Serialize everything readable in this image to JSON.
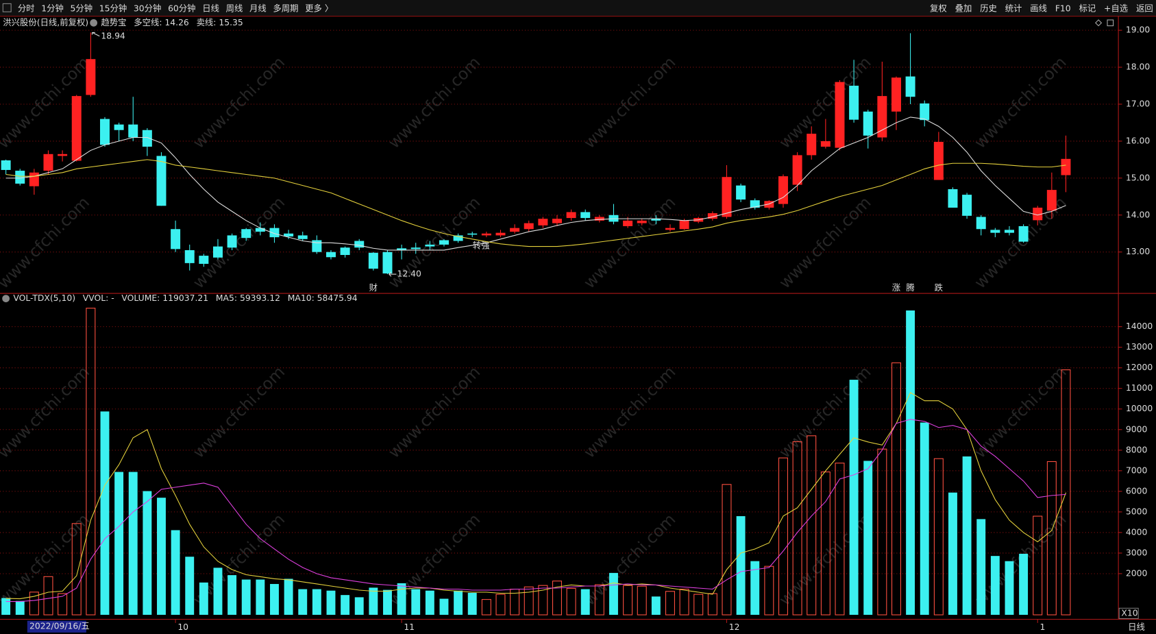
{
  "toolbar": {
    "left": [
      "分时",
      "1分钟",
      "5分钟",
      "15分钟",
      "30分钟",
      "60分钟",
      "日线",
      "周线",
      "月线",
      "多周期",
      "更多 〉"
    ],
    "active": "日线",
    "right": [
      "复权",
      "叠加",
      "历史",
      "统计",
      "画线",
      "F10",
      "标记",
      "+自选",
      "返回"
    ]
  },
  "watermark": "www.cfchi.com",
  "cursor_date": "2022/09/16/五",
  "period_label": "日线",
  "chart_data": [
    {
      "type": "candlestick",
      "title": "洪兴股份(日线,前复权)",
      "header": [
        {
          "text": "趋势宝",
          "color": "#dddddd"
        },
        {
          "text": "多空线: 14.26",
          "color": "#e8e8e8"
        },
        {
          "text": "卖线: 15.35",
          "color": "#e6d23c"
        }
      ],
      "categories": [
        null,
        null,
        null,
        null,
        null,
        null,
        null,
        null,
        null,
        null,
        null,
        null,
        "10",
        null,
        null,
        null,
        null,
        null,
        null,
        null,
        null,
        null,
        null,
        null,
        null,
        null,
        null,
        null,
        "11",
        null,
        null,
        null,
        null,
        null,
        null,
        null,
        null,
        null,
        null,
        null,
        null,
        null,
        null,
        null,
        null,
        null,
        null,
        null,
        null,
        null,
        null,
        "12",
        null,
        null,
        null,
        null,
        null,
        null,
        null,
        null,
        null,
        null,
        null,
        null,
        null,
        null,
        null,
        null,
        null,
        null,
        null,
        null,
        null,
        "1",
        null,
        null
      ],
      "open": [
        15.48,
        15.2,
        14.78,
        15.2,
        15.6,
        15.47,
        17.25,
        16.6,
        16.45,
        16.45,
        16.3,
        15.6,
        13.62,
        13.05,
        12.9,
        13.15,
        13.45,
        13.62,
        13.65,
        13.65,
        13.5,
        13.45,
        13.32,
        13.0,
        13.12,
        13.3,
        12.98,
        13.0,
        13.1,
        13.12,
        13.2,
        13.32,
        13.45,
        13.5,
        13.45,
        13.45,
        13.55,
        13.62,
        13.72,
        13.78,
        13.92,
        14.08,
        13.85,
        14.0,
        13.7,
        13.78,
        13.9,
        13.6,
        13.62,
        13.82,
        13.9,
        13.95,
        14.8,
        14.4,
        14.2,
        14.3,
        14.82,
        15.62,
        15.85,
        15.82,
        17.5,
        16.8,
        16.1,
        16.8,
        17.75,
        17.02,
        14.95,
        14.7,
        14.55,
        13.95,
        13.6,
        13.6,
        13.7,
        13.86,
        14.12,
        15.08
      ],
      "high": [
        15.5,
        15.25,
        15.25,
        15.75,
        15.75,
        17.25,
        18.94,
        16.65,
        16.5,
        17.2,
        16.35,
        15.7,
        13.85,
        13.2,
        12.95,
        13.35,
        13.5,
        13.65,
        13.8,
        13.75,
        13.6,
        13.55,
        13.45,
        13.05,
        13.15,
        13.35,
        13.0,
        13.05,
        13.2,
        13.25,
        13.3,
        13.35,
        13.5,
        13.55,
        13.55,
        13.6,
        13.75,
        13.85,
        13.95,
        14.0,
        14.15,
        14.15,
        14.0,
        14.3,
        13.95,
        13.9,
        14.0,
        13.75,
        13.9,
        13.95,
        14.1,
        15.35,
        14.85,
        14.45,
        14.4,
        15.1,
        15.7,
        16.4,
        16.6,
        17.65,
        18.2,
        16.85,
        18.15,
        17.75,
        18.92,
        17.1,
        16.25,
        14.75,
        14.6,
        14.0,
        13.65,
        13.7,
        13.75,
        14.25,
        15.15,
        16.15
      ],
      "low": [
        15.1,
        14.8,
        14.55,
        15.1,
        15.45,
        15.45,
        17.2,
        15.85,
        16.0,
        16.0,
        15.6,
        14.25,
        13.0,
        12.5,
        12.6,
        12.8,
        13.05,
        13.3,
        13.45,
        13.25,
        13.35,
        13.3,
        12.95,
        12.8,
        12.85,
        13.05,
        12.5,
        12.4,
        12.8,
        12.95,
        13.05,
        13.15,
        13.25,
        13.4,
        13.4,
        13.4,
        13.5,
        13.55,
        13.65,
        13.7,
        13.85,
        13.85,
        13.8,
        13.75,
        13.65,
        13.72,
        13.75,
        13.55,
        13.6,
        13.78,
        13.85,
        13.9,
        14.35,
        14.15,
        14.15,
        14.2,
        14.65,
        15.5,
        15.8,
        15.75,
        16.5,
        15.8,
        16.0,
        16.3,
        17.0,
        16.4,
        14.95,
        14.2,
        13.9,
        13.45,
        13.4,
        13.45,
        13.25,
        13.72,
        13.9,
        14.62
      ],
      "close": [
        15.22,
        14.85,
        15.15,
        15.65,
        15.65,
        17.22,
        18.22,
        15.9,
        16.3,
        16.1,
        15.85,
        14.25,
        13.08,
        12.7,
        12.68,
        12.85,
        13.12,
        13.38,
        13.55,
        13.4,
        13.42,
        13.35,
        13.0,
        12.86,
        12.92,
        13.12,
        12.55,
        12.42,
        13.05,
        13.08,
        13.15,
        13.2,
        13.3,
        13.47,
        13.5,
        13.52,
        13.65,
        13.78,
        13.9,
        13.9,
        14.08,
        13.92,
        13.95,
        13.82,
        13.85,
        13.85,
        13.85,
        13.65,
        13.85,
        13.92,
        14.05,
        15.03,
        14.42,
        14.2,
        14.38,
        15.05,
        15.62,
        16.2,
        16.0,
        17.6,
        16.58,
        16.15,
        17.22,
        17.72,
        17.2,
        16.57,
        15.98,
        14.2,
        13.98,
        13.62,
        13.52,
        13.52,
        13.28,
        14.2,
        14.68,
        15.52
      ],
      "up_color": "#ff2222",
      "down_color": "#3cf0f0",
      "series": [
        {
          "color": "#e0e0e0",
          "values": [
            15.0,
            15.0,
            15.05,
            15.15,
            15.25,
            15.5,
            15.75,
            15.9,
            16.0,
            16.1,
            16.1,
            15.95,
            15.55,
            15.1,
            14.7,
            14.35,
            14.1,
            13.85,
            13.65,
            13.5,
            13.4,
            13.3,
            13.25,
            13.25,
            13.22,
            13.18,
            13.1,
            13.05,
            13.05,
            13.05,
            13.05,
            13.05,
            13.12,
            13.18,
            13.25,
            13.35,
            13.45,
            13.55,
            13.62,
            13.72,
            13.8,
            13.85,
            13.88,
            13.9,
            13.9,
            13.9,
            13.9,
            13.88,
            13.85,
            13.87,
            13.95,
            14.05,
            14.15,
            14.22,
            14.3,
            14.48,
            14.8,
            15.2,
            15.5,
            15.8,
            15.95,
            16.1,
            16.3,
            16.5,
            16.65,
            16.6,
            16.4,
            16.1,
            15.7,
            15.2,
            14.8,
            14.45,
            14.1,
            14.0,
            14.1,
            14.26
          ]
        },
        {
          "color": "#e6d23c",
          "values": [
            15.1,
            15.05,
            15.05,
            15.1,
            15.15,
            15.25,
            15.3,
            15.35,
            15.4,
            15.45,
            15.5,
            15.45,
            15.35,
            15.3,
            15.25,
            15.2,
            15.15,
            15.1,
            15.05,
            15.0,
            14.9,
            14.8,
            14.7,
            14.6,
            14.45,
            14.3,
            14.15,
            14.0,
            13.85,
            13.72,
            13.6,
            13.5,
            13.42,
            13.35,
            13.28,
            13.22,
            13.18,
            13.15,
            13.15,
            13.15,
            13.18,
            13.22,
            13.27,
            13.32,
            13.37,
            13.42,
            13.47,
            13.52,
            13.57,
            13.62,
            13.68,
            13.78,
            13.85,
            13.9,
            13.95,
            14.02,
            14.12,
            14.25,
            14.38,
            14.5,
            14.6,
            14.7,
            14.8,
            14.95,
            15.1,
            15.25,
            15.35,
            15.4,
            15.4,
            15.4,
            15.38,
            15.35,
            15.32,
            15.3,
            15.3,
            15.35
          ]
        }
      ],
      "extreme_labels": {
        "high": {
          "value": 18.94,
          "label": "18.94"
        },
        "low": {
          "value": 12.4,
          "label": "12.40"
        }
      },
      "event_labels": [
        null,
        null,
        null,
        null,
        null,
        null,
        null,
        null,
        null,
        null,
        null,
        null,
        null,
        null,
        null,
        null,
        null,
        null,
        null,
        null,
        null,
        null,
        null,
        null,
        null,
        null,
        {
          "label": "财",
          "color": "#6aa8ff"
        },
        null,
        null,
        null,
        null,
        null,
        null,
        null,
        null,
        null,
        null,
        null,
        null,
        null,
        null,
        null,
        null,
        null,
        null,
        null,
        null,
        null,
        null,
        null,
        null,
        null,
        null,
        null,
        null,
        null,
        null,
        null,
        null,
        null,
        null,
        null,
        null,
        {
          "label": "涨",
          "color": "#ff4040"
        },
        {
          "label": "腾",
          "color": "#ff7050"
        },
        null,
        {
          "label": "跌",
          "color": "#30e030"
        },
        null,
        null,
        null,
        null,
        null,
        null,
        null,
        null,
        null
      ],
      "signal_labels": [
        null,
        null,
        null,
        null,
        null,
        null,
        null,
        null,
        null,
        null,
        null,
        null,
        null,
        null,
        null,
        null,
        null,
        null,
        null,
        null,
        null,
        null,
        null,
        null,
        null,
        null,
        null,
        null,
        null,
        null,
        null,
        null,
        null,
        {
          "label": "转强",
          "color": "#e6d23c"
        },
        null,
        null,
        null,
        null,
        null,
        null,
        null,
        null,
        null,
        null,
        null,
        null,
        null,
        null,
        null,
        null,
        null,
        null,
        null,
        null,
        null,
        null,
        null,
        null,
        null,
        null,
        null,
        null,
        null,
        null,
        null,
        null,
        null,
        null,
        null,
        null,
        null,
        null,
        null,
        null,
        null,
        null
      ],
      "ylim": [
        11.88,
        19.32
      ],
      "yticks": [
        {
          "value": 13,
          "label": "13.00"
        },
        {
          "value": 14,
          "label": "14.00"
        },
        {
          "value": 15,
          "label": "15.00"
        },
        {
          "value": 16,
          "label": "16.00"
        },
        {
          "value": 17,
          "label": "17.00"
        },
        {
          "value": 18,
          "label": "18.00"
        },
        {
          "value": 19,
          "label": "19.00"
        }
      ],
      "grid": true
    },
    {
      "type": "bar",
      "header": [
        {
          "text": "VOL-TDX(5,10)",
          "color": "#dddddd"
        },
        {
          "text": "VVOL: -",
          "color": "#dddddd"
        },
        {
          "text": "VOLUME: 119037.21",
          "color": "#e6d23c"
        },
        {
          "text": "MA5: 59393.12",
          "color": "#e6d23c"
        },
        {
          "text": "MA10: 58475.94",
          "color": "#e040e0"
        }
      ],
      "values": [
        818,
        675,
        1105,
        1857,
        1033,
        4436,
        14900,
        9881,
        6943,
        6943,
        6012,
        5690,
        4114,
        2824,
        1570,
        2287,
        1929,
        1714,
        1714,
        1499,
        1750,
        1248,
        1248,
        1176,
        962,
        854,
        1320,
        1212,
        1535,
        1248,
        1176,
        782,
        1176,
        1069,
        747,
        997,
        1248,
        1356,
        1427,
        1642,
        1284,
        1248,
        1463,
        2036,
        1427,
        1391,
        890,
        1141,
        1248,
        997,
        1033,
        6335,
        4794,
        2609,
        2358,
        7624,
        8412,
        8699,
        6943,
        7373,
        11421,
        7481,
        8054,
        12245,
        14788,
        9343,
        7588,
        5940,
        7696,
        4651,
        2860,
        2609,
        2967,
        4794,
        7445,
        11904
      ],
      "up_color": "#ff5040",
      "down_color": "#3cf0f0",
      "series": [
        {
          "color": "#e6d23c",
          "values": [
            800,
            780,
            900,
            1100,
            1150,
            1900,
            4600,
            6300,
            7300,
            8600,
            9000,
            7100,
            5800,
            4400,
            3300,
            2600,
            2200,
            1950,
            1850,
            1750,
            1700,
            1600,
            1500,
            1400,
            1300,
            1200,
            1150,
            1150,
            1250,
            1300,
            1300,
            1200,
            1150,
            1100,
            1100,
            1050,
            1050,
            1100,
            1200,
            1350,
            1450,
            1400,
            1400,
            1550,
            1450,
            1500,
            1450,
            1300,
            1200,
            1100,
            1000,
            2200,
            3000,
            3200,
            3500,
            4800,
            5200,
            6100,
            7000,
            7800,
            8600,
            8400,
            8250,
            9300,
            10800,
            10400,
            10400,
            10000,
            9000,
            7000,
            5600,
            4600,
            4000,
            3550,
            4100,
            5940
          ]
        },
        {
          "color": "#e040e0",
          "values": [
            650,
            650,
            700,
            800,
            900,
            1300,
            2700,
            3700,
            4300,
            5000,
            5500,
            6100,
            6200,
            6300,
            6400,
            6200,
            5300,
            4400,
            3700,
            3200,
            2700,
            2300,
            2000,
            1800,
            1700,
            1600,
            1500,
            1450,
            1400,
            1350,
            1300,
            1250,
            1250,
            1200,
            1200,
            1200,
            1250,
            1250,
            1300,
            1300,
            1350,
            1400,
            1400,
            1450,
            1500,
            1450,
            1450,
            1400,
            1350,
            1300,
            1250,
            1700,
            2100,
            2200,
            2300,
            3100,
            4000,
            4800,
            5500,
            6600,
            6800,
            7100,
            8000,
            9300,
            9500,
            9400,
            9100,
            9200,
            9000,
            8200,
            7700,
            7100,
            6500,
            5700,
            5800,
            5850
          ]
        }
      ],
      "unit_label": "X10",
      "ylim": [
        0,
        14900
      ],
      "yticks": [
        2000,
        3000,
        4000,
        5000,
        6000,
        7000,
        8000,
        9000,
        10000,
        11000,
        12000,
        13000,
        14000
      ],
      "grid": true
    }
  ]
}
